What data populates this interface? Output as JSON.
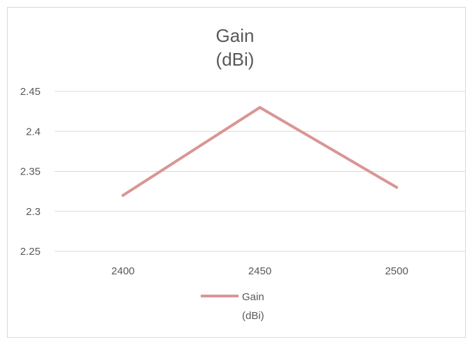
{
  "chart_data": {
    "type": "line",
    "title_lines": [
      "Gain",
      "(dBi)"
    ],
    "categories": [
      "2400",
      "2450",
      "2500"
    ],
    "series": [
      {
        "name_lines": [
          "Gain",
          "(dBi)"
        ],
        "values": [
          2.32,
          2.43,
          2.33
        ],
        "color": "#d99694"
      }
    ],
    "ylim": [
      2.25,
      2.45
    ],
    "yticks": [
      "2.25",
      "2.3",
      "2.35",
      "2.4",
      "2.45"
    ],
    "grid": true,
    "legend_position": "bottom",
    "gridline_color": "#d9d9d9",
    "text_color": "#595959"
  }
}
